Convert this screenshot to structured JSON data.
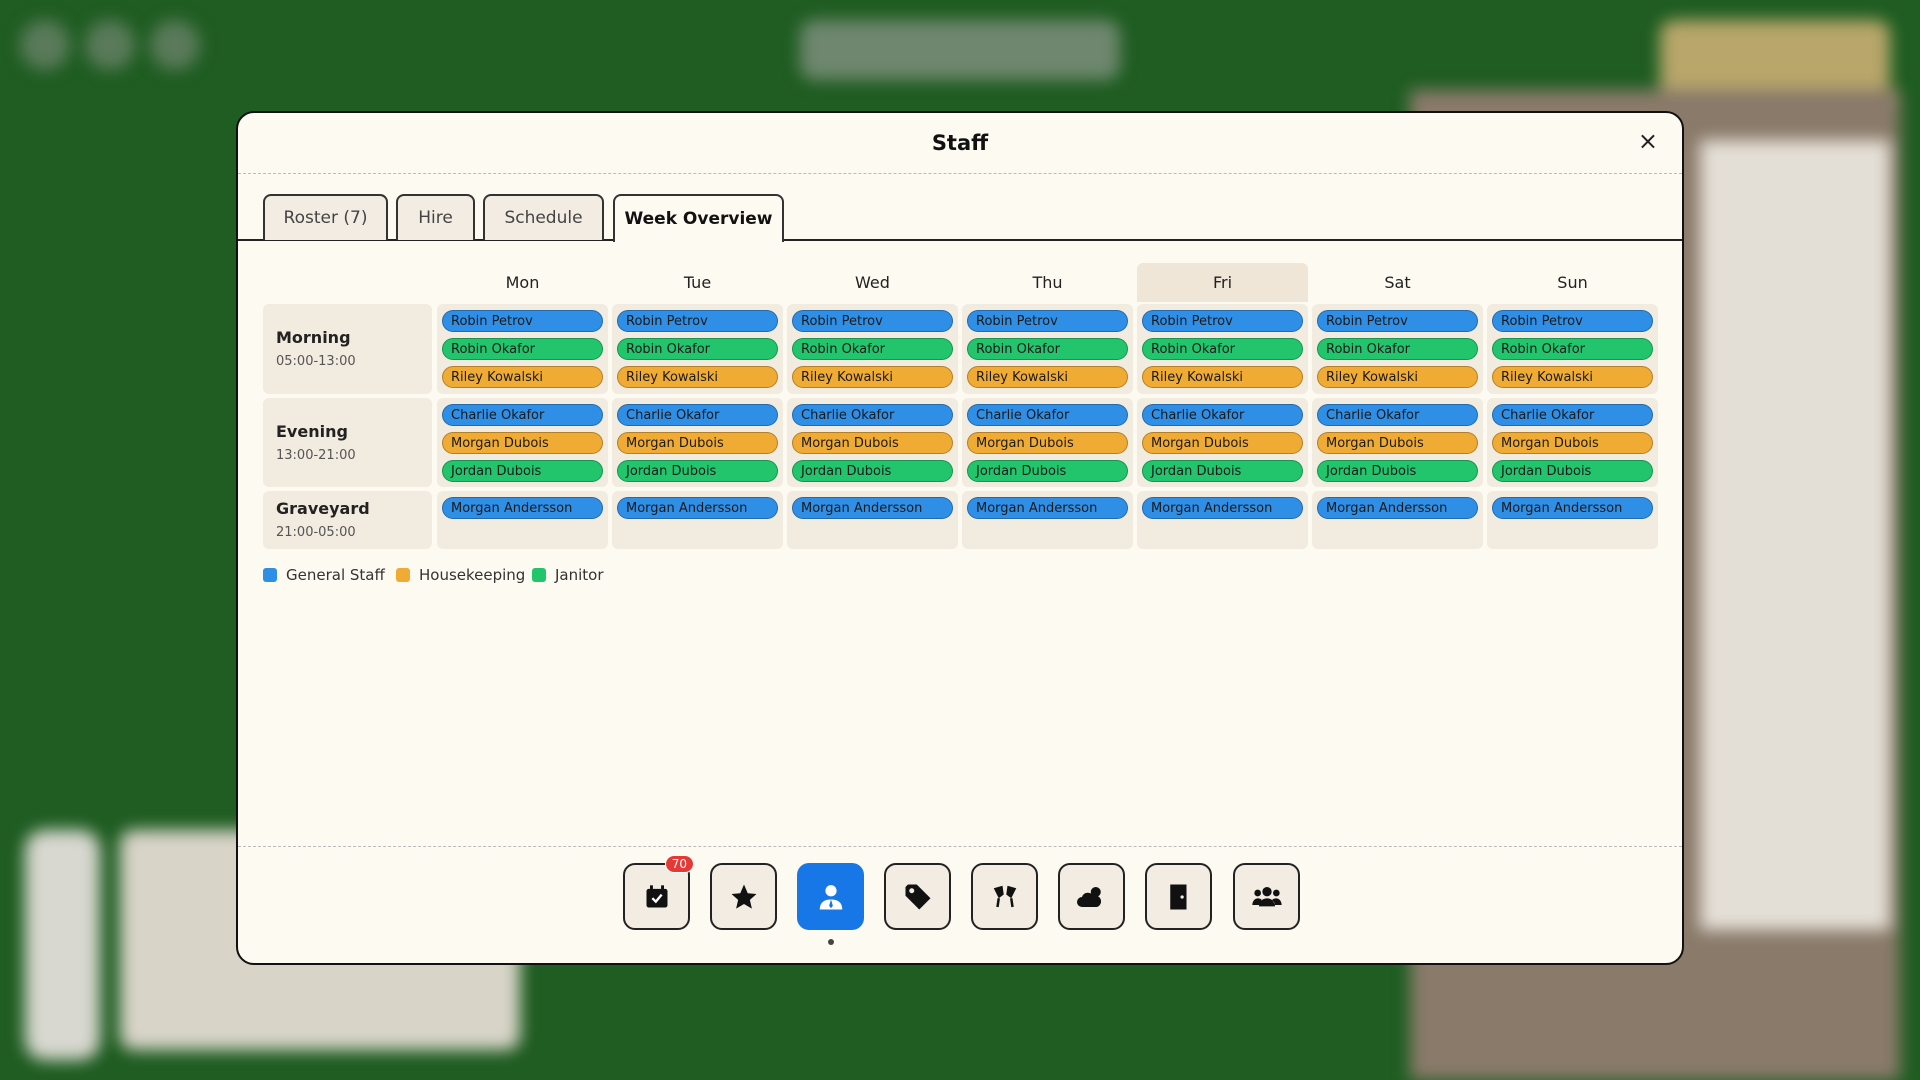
{
  "modal": {
    "title": "Staff",
    "close": "×"
  },
  "tabs": {
    "items": [
      "Roster (7)",
      "Hire",
      "Schedule",
      "Week Overview"
    ],
    "active": 3
  },
  "week": {
    "days": [
      "Mon",
      "Tue",
      "Wed",
      "Thu",
      "Fri",
      "Sat",
      "Sun"
    ],
    "highlighted": 4,
    "shifts": [
      {
        "name": "Morning",
        "time": "05:00-13:00",
        "days": [
          [
            {
              "name": "Robin Petrov",
              "role": 0
            },
            {
              "name": "Robin Okafor",
              "role": 2
            },
            {
              "name": "Riley Kowalski",
              "role": 1
            }
          ],
          [
            {
              "name": "Robin Petrov",
              "role": 0
            },
            {
              "name": "Robin Okafor",
              "role": 2
            },
            {
              "name": "Riley Kowalski",
              "role": 1
            }
          ],
          [
            {
              "name": "Robin Petrov",
              "role": 0
            },
            {
              "name": "Robin Okafor",
              "role": 2
            },
            {
              "name": "Riley Kowalski",
              "role": 1
            }
          ],
          [
            {
              "name": "Robin Petrov",
              "role": 0
            },
            {
              "name": "Robin Okafor",
              "role": 2
            },
            {
              "name": "Riley Kowalski",
              "role": 1
            }
          ],
          [
            {
              "name": "Robin Petrov",
              "role": 0
            },
            {
              "name": "Robin Okafor",
              "role": 2
            },
            {
              "name": "Riley Kowalski",
              "role": 1
            }
          ],
          [
            {
              "name": "Robin Petrov",
              "role": 0
            },
            {
              "name": "Robin Okafor",
              "role": 2
            },
            {
              "name": "Riley Kowalski",
              "role": 1
            }
          ],
          [
            {
              "name": "Robin Petrov",
              "role": 0
            },
            {
              "name": "Robin Okafor",
              "role": 2
            },
            {
              "name": "Riley Kowalski",
              "role": 1
            }
          ]
        ]
      },
      {
        "name": "Evening",
        "time": "13:00-21:00",
        "days": [
          [
            {
              "name": "Charlie Okafor",
              "role": 0
            },
            {
              "name": "Morgan Dubois",
              "role": 1
            },
            {
              "name": "Jordan Dubois",
              "role": 2
            }
          ],
          [
            {
              "name": "Charlie Okafor",
              "role": 0
            },
            {
              "name": "Morgan Dubois",
              "role": 1
            },
            {
              "name": "Jordan Dubois",
              "role": 2
            }
          ],
          [
            {
              "name": "Charlie Okafor",
              "role": 0
            },
            {
              "name": "Morgan Dubois",
              "role": 1
            },
            {
              "name": "Jordan Dubois",
              "role": 2
            }
          ],
          [
            {
              "name": "Charlie Okafor",
              "role": 0
            },
            {
              "name": "Morgan Dubois",
              "role": 1
            },
            {
              "name": "Jordan Dubois",
              "role": 2
            }
          ],
          [
            {
              "name": "Charlie Okafor",
              "role": 0
            },
            {
              "name": "Morgan Dubois",
              "role": 1
            },
            {
              "name": "Jordan Dubois",
              "role": 2
            }
          ],
          [
            {
              "name": "Charlie Okafor",
              "role": 0
            },
            {
              "name": "Morgan Dubois",
              "role": 1
            },
            {
              "name": "Jordan Dubois",
              "role": 2
            }
          ],
          [
            {
              "name": "Charlie Okafor",
              "role": 0
            },
            {
              "name": "Morgan Dubois",
              "role": 1
            },
            {
              "name": "Jordan Dubois",
              "role": 2
            }
          ]
        ]
      },
      {
        "name": "Graveyard",
        "time": "21:00-05:00",
        "days": [
          [
            {
              "name": "Morgan Andersson",
              "role": 0
            }
          ],
          [
            {
              "name": "Morgan Andersson",
              "role": 0
            }
          ],
          [
            {
              "name": "Morgan Andersson",
              "role": 0
            }
          ],
          [
            {
              "name": "Morgan Andersson",
              "role": 0
            }
          ],
          [
            {
              "name": "Morgan Andersson",
              "role": 0
            }
          ],
          [
            {
              "name": "Morgan Andersson",
              "role": 0
            }
          ],
          [
            {
              "name": "Morgan Andersson",
              "role": 0
            }
          ]
        ]
      }
    ]
  },
  "legend": [
    {
      "name": "General Staff",
      "color": "#2f8ee6"
    },
    {
      "name": "Housekeeping",
      "color": "#f0ab35"
    },
    {
      "name": "Janitor",
      "color": "#22c46c"
    }
  ],
  "toolbar": {
    "badge": "70",
    "active": 2
  }
}
